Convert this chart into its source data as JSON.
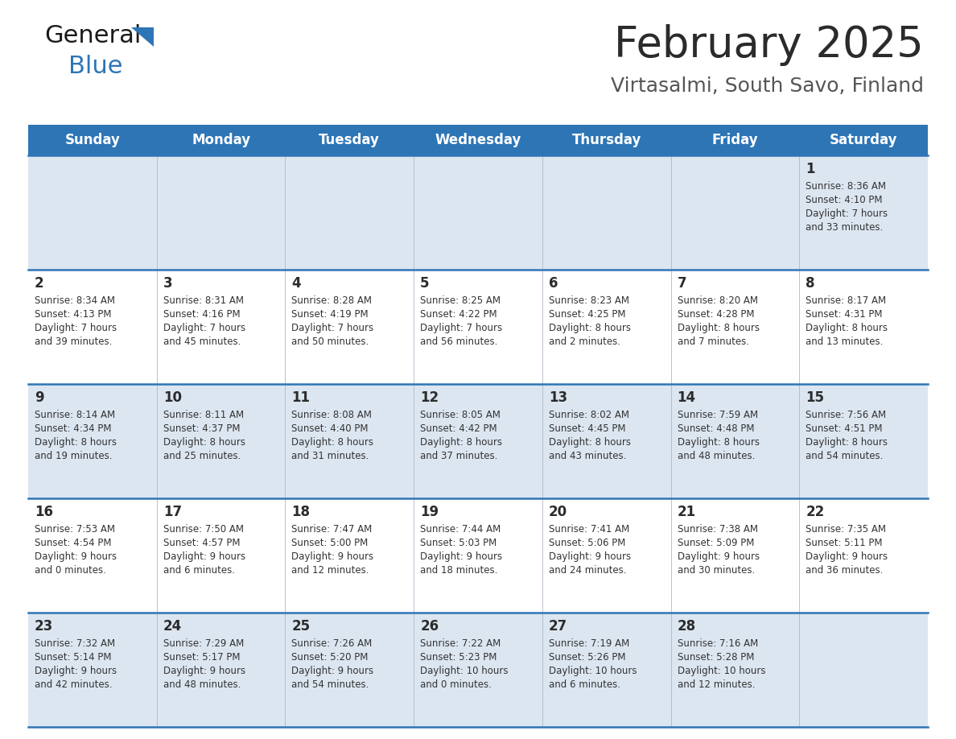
{
  "title": "February 2025",
  "subtitle": "Virtasalmi, South Savo, Finland",
  "title_color": "#2b2b2b",
  "subtitle_color": "#555555",
  "header_bg_color": "#2e75b6",
  "header_text_color": "#ffffff",
  "day_names": [
    "Sunday",
    "Monday",
    "Tuesday",
    "Wednesday",
    "Thursday",
    "Friday",
    "Saturday"
  ],
  "odd_row_bg": "#dce6f1",
  "even_row_bg": "#ffffff",
  "separator_color": "#2e75b6",
  "day_number_color": "#2b2b2b",
  "day_info_color": "#333333",
  "calendar": [
    [
      {
        "day": null,
        "info": ""
      },
      {
        "day": null,
        "info": ""
      },
      {
        "day": null,
        "info": ""
      },
      {
        "day": null,
        "info": ""
      },
      {
        "day": null,
        "info": ""
      },
      {
        "day": null,
        "info": ""
      },
      {
        "day": 1,
        "info": "Sunrise: 8:36 AM\nSunset: 4:10 PM\nDaylight: 7 hours\nand 33 minutes."
      }
    ],
    [
      {
        "day": 2,
        "info": "Sunrise: 8:34 AM\nSunset: 4:13 PM\nDaylight: 7 hours\nand 39 minutes."
      },
      {
        "day": 3,
        "info": "Sunrise: 8:31 AM\nSunset: 4:16 PM\nDaylight: 7 hours\nand 45 minutes."
      },
      {
        "day": 4,
        "info": "Sunrise: 8:28 AM\nSunset: 4:19 PM\nDaylight: 7 hours\nand 50 minutes."
      },
      {
        "day": 5,
        "info": "Sunrise: 8:25 AM\nSunset: 4:22 PM\nDaylight: 7 hours\nand 56 minutes."
      },
      {
        "day": 6,
        "info": "Sunrise: 8:23 AM\nSunset: 4:25 PM\nDaylight: 8 hours\nand 2 minutes."
      },
      {
        "day": 7,
        "info": "Sunrise: 8:20 AM\nSunset: 4:28 PM\nDaylight: 8 hours\nand 7 minutes."
      },
      {
        "day": 8,
        "info": "Sunrise: 8:17 AM\nSunset: 4:31 PM\nDaylight: 8 hours\nand 13 minutes."
      }
    ],
    [
      {
        "day": 9,
        "info": "Sunrise: 8:14 AM\nSunset: 4:34 PM\nDaylight: 8 hours\nand 19 minutes."
      },
      {
        "day": 10,
        "info": "Sunrise: 8:11 AM\nSunset: 4:37 PM\nDaylight: 8 hours\nand 25 minutes."
      },
      {
        "day": 11,
        "info": "Sunrise: 8:08 AM\nSunset: 4:40 PM\nDaylight: 8 hours\nand 31 minutes."
      },
      {
        "day": 12,
        "info": "Sunrise: 8:05 AM\nSunset: 4:42 PM\nDaylight: 8 hours\nand 37 minutes."
      },
      {
        "day": 13,
        "info": "Sunrise: 8:02 AM\nSunset: 4:45 PM\nDaylight: 8 hours\nand 43 minutes."
      },
      {
        "day": 14,
        "info": "Sunrise: 7:59 AM\nSunset: 4:48 PM\nDaylight: 8 hours\nand 48 minutes."
      },
      {
        "day": 15,
        "info": "Sunrise: 7:56 AM\nSunset: 4:51 PM\nDaylight: 8 hours\nand 54 minutes."
      }
    ],
    [
      {
        "day": 16,
        "info": "Sunrise: 7:53 AM\nSunset: 4:54 PM\nDaylight: 9 hours\nand 0 minutes."
      },
      {
        "day": 17,
        "info": "Sunrise: 7:50 AM\nSunset: 4:57 PM\nDaylight: 9 hours\nand 6 minutes."
      },
      {
        "day": 18,
        "info": "Sunrise: 7:47 AM\nSunset: 5:00 PM\nDaylight: 9 hours\nand 12 minutes."
      },
      {
        "day": 19,
        "info": "Sunrise: 7:44 AM\nSunset: 5:03 PM\nDaylight: 9 hours\nand 18 minutes."
      },
      {
        "day": 20,
        "info": "Sunrise: 7:41 AM\nSunset: 5:06 PM\nDaylight: 9 hours\nand 24 minutes."
      },
      {
        "day": 21,
        "info": "Sunrise: 7:38 AM\nSunset: 5:09 PM\nDaylight: 9 hours\nand 30 minutes."
      },
      {
        "day": 22,
        "info": "Sunrise: 7:35 AM\nSunset: 5:11 PM\nDaylight: 9 hours\nand 36 minutes."
      }
    ],
    [
      {
        "day": 23,
        "info": "Sunrise: 7:32 AM\nSunset: 5:14 PM\nDaylight: 9 hours\nand 42 minutes."
      },
      {
        "day": 24,
        "info": "Sunrise: 7:29 AM\nSunset: 5:17 PM\nDaylight: 9 hours\nand 48 minutes."
      },
      {
        "day": 25,
        "info": "Sunrise: 7:26 AM\nSunset: 5:20 PM\nDaylight: 9 hours\nand 54 minutes."
      },
      {
        "day": 26,
        "info": "Sunrise: 7:22 AM\nSunset: 5:23 PM\nDaylight: 10 hours\nand 0 minutes."
      },
      {
        "day": 27,
        "info": "Sunrise: 7:19 AM\nSunset: 5:26 PM\nDaylight: 10 hours\nand 6 minutes."
      },
      {
        "day": 28,
        "info": "Sunrise: 7:16 AM\nSunset: 5:28 PM\nDaylight: 10 hours\nand 12 minutes."
      },
      {
        "day": null,
        "info": ""
      }
    ]
  ]
}
